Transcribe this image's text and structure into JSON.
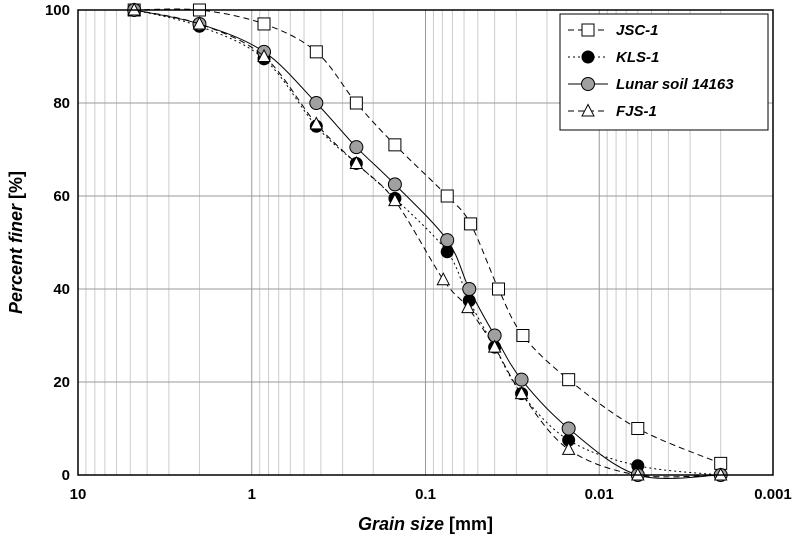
{
  "chart_data": {
    "type": "scatter",
    "xlabel": {
      "italic": "Grain size",
      "rest": " [mm]"
    },
    "ylabel": {
      "italic": "Percent finer",
      "rest": " [%]"
    },
    "x_scale": "log",
    "x_reversed": true,
    "xlim": [
      10,
      0.001
    ],
    "ylim": [
      0,
      100
    ],
    "x_ticks": [
      10,
      1,
      0.1,
      0.01,
      0.001
    ],
    "x_tick_labels": [
      "10",
      "1",
      "0.1",
      "0.01",
      "0.001"
    ],
    "y_ticks": [
      0,
      20,
      40,
      60,
      80,
      100
    ],
    "y_tick_labels": [
      "0",
      "20",
      "40",
      "60",
      "80",
      "100"
    ],
    "grid": true,
    "legend_position": "top-right",
    "series": [
      {
        "name": "JSC-1",
        "marker": "square-open",
        "line": "dashed",
        "points": [
          [
            4.75,
            100
          ],
          [
            2.0,
            100
          ],
          [
            0.85,
            97
          ],
          [
            0.425,
            91
          ],
          [
            0.25,
            80
          ],
          [
            0.15,
            71
          ],
          [
            0.075,
            60
          ],
          [
            0.055,
            54
          ],
          [
            0.038,
            40
          ],
          [
            0.0275,
            30
          ],
          [
            0.015,
            20.5
          ],
          [
            0.006,
            10
          ],
          [
            0.002,
            2.5
          ]
        ]
      },
      {
        "name": "KLS-1",
        "marker": "circle-filled",
        "line": "dotted",
        "points": [
          [
            4.75,
            100
          ],
          [
            2.0,
            96.5
          ],
          [
            0.85,
            89.5
          ],
          [
            0.425,
            75
          ],
          [
            0.25,
            67
          ],
          [
            0.15,
            59.5
          ],
          [
            0.075,
            48
          ],
          [
            0.056,
            37.5
          ],
          [
            0.04,
            27.5
          ],
          [
            0.028,
            17.5
          ],
          [
            0.015,
            7.5
          ],
          [
            0.006,
            2
          ],
          [
            0.002,
            0
          ]
        ]
      },
      {
        "name": "Lunar soil 14163",
        "marker": "circle-gray",
        "line": "solid",
        "points": [
          [
            4.75,
            100
          ],
          [
            2.0,
            97
          ],
          [
            0.85,
            91
          ],
          [
            0.425,
            80
          ],
          [
            0.25,
            70.5
          ],
          [
            0.15,
            62.5
          ],
          [
            0.075,
            50.5
          ],
          [
            0.056,
            40
          ],
          [
            0.04,
            30
          ],
          [
            0.028,
            20.5
          ],
          [
            0.015,
            10
          ],
          [
            0.006,
            0
          ],
          [
            0.002,
            0
          ]
        ]
      },
      {
        "name": "FJS-1",
        "marker": "triangle-open",
        "line": "dashed",
        "points": [
          [
            4.75,
            100
          ],
          [
            2.0,
            97
          ],
          [
            0.85,
            90
          ],
          [
            0.425,
            75.5
          ],
          [
            0.25,
            67
          ],
          [
            0.15,
            59
          ],
          [
            0.079,
            42
          ],
          [
            0.057,
            36
          ],
          [
            0.04,
            27.5
          ],
          [
            0.028,
            17.5
          ],
          [
            0.015,
            5.5
          ],
          [
            0.006,
            0
          ],
          [
            0.002,
            0
          ]
        ]
      }
    ]
  }
}
